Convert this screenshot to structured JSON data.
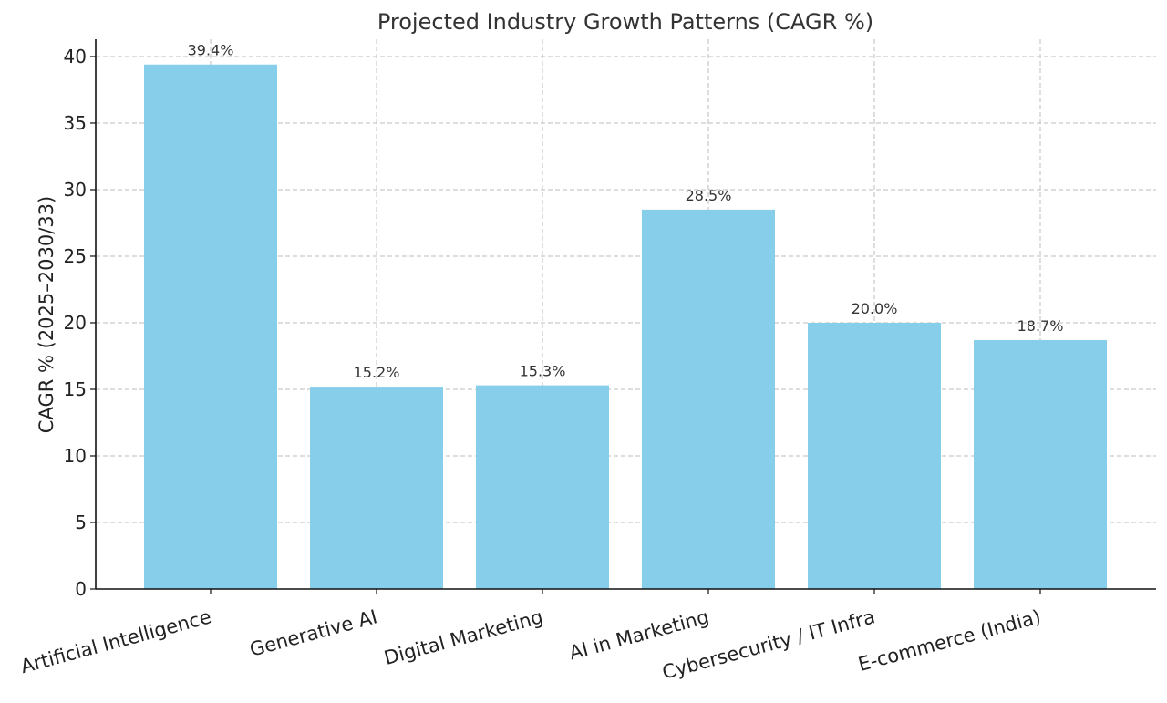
{
  "chart_data": {
    "type": "bar",
    "title": "Projected Industry Growth Patterns (CAGR %)",
    "xlabel": "",
    "ylabel": "CAGR % (2025–2030/33)",
    "categories": [
      "Artificial Intelligence",
      "Generative AI",
      "Digital Marketing",
      "AI in Marketing",
      "Cybersecurity / IT Infra",
      "E-commerce (India)"
    ],
    "values": [
      39.4,
      15.2,
      15.3,
      28.5,
      20.0,
      18.7
    ],
    "value_labels": [
      "39.4%",
      "15.2%",
      "15.3%",
      "28.5%",
      "20.0%",
      "18.7%"
    ],
    "ylim": [
      0,
      41.3
    ],
    "yticks": [
      0,
      5,
      10,
      15,
      20,
      25,
      30,
      35,
      40
    ],
    "ytick_labels": [
      "0",
      "5",
      "10",
      "15",
      "20",
      "25",
      "30",
      "35",
      "40"
    ],
    "grid": true,
    "bar_color": "#87CEEB"
  }
}
